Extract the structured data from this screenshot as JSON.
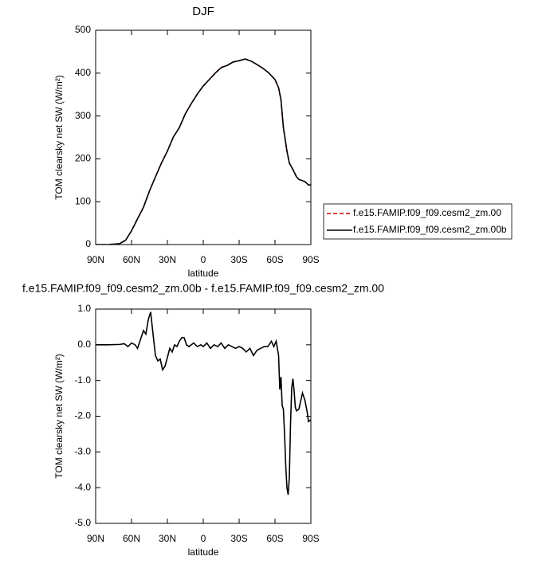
{
  "chart_data": [
    {
      "type": "line",
      "title": "DJF",
      "xlabel": "latitude",
      "ylabel": "TOM clearsky net SW (W/m²)",
      "x": [
        90,
        80,
        70,
        65,
        60,
        55,
        50,
        45,
        40,
        35,
        30,
        25,
        20,
        15,
        10,
        5,
        0,
        -5,
        -10,
        -15,
        -20,
        -25,
        -30,
        -35,
        -40,
        -45,
        -50,
        -55,
        -60,
        -63,
        -65,
        -67,
        -70,
        -72,
        -75,
        -78,
        -80,
        -83,
        -85,
        -88,
        -90
      ],
      "series": [
        {
          "name": "f.e15.FAMIP.f09_f09.cesm2_zm.00",
          "color": "#cc0000",
          "dash": true,
          "values": [
            0,
            0,
            2,
            10,
            32,
            60,
            87,
            125,
            158,
            190,
            218,
            251,
            273,
            305,
            329,
            351,
            370,
            385,
            400,
            413,
            418,
            426,
            429,
            433,
            428,
            420,
            411,
            400,
            385,
            366,
            338,
            273,
            218,
            190,
            175,
            158,
            152,
            149,
            147,
            139,
            139
          ]
        },
        {
          "name": "f.e15.FAMIP.f09_f09.cesm2_zm.00b",
          "color": "#000000",
          "dash": false,
          "values": [
            0,
            0,
            2,
            10,
            32,
            60,
            87,
            125,
            158,
            190,
            218,
            251,
            273,
            305,
            329,
            351,
            370,
            385,
            400,
            413,
            418,
            426,
            429,
            433,
            428,
            420,
            411,
            400,
            385,
            366,
            338,
            273,
            218,
            190,
            175,
            158,
            152,
            149,
            147,
            139,
            139
          ]
        }
      ],
      "xlim": [
        90,
        -90
      ],
      "xticks": [
        {
          "value": 90,
          "label": "90N"
        },
        {
          "value": 60,
          "label": "60N"
        },
        {
          "value": 30,
          "label": "30N"
        },
        0,
        {
          "value": -30,
          "label": "30S"
        },
        {
          "value": -60,
          "label": "60S"
        },
        {
          "value": -90,
          "label": "90S"
        }
      ],
      "ylim": [
        0,
        500
      ],
      "yticks": [
        0,
        100,
        200,
        300,
        400,
        500
      ],
      "legend": "right"
    },
    {
      "type": "line",
      "title": "f.e15.FAMIP.f09_f09.cesm2_zm.00b - f.e15.FAMIP.f09_f09.cesm2_zm.00",
      "xlabel": "latitude",
      "ylabel": "TOM clearsky net SW (W/m²)",
      "x": [
        90,
        80,
        70,
        66,
        63,
        60,
        57,
        55,
        53,
        50,
        48,
        46,
        44,
        42,
        40,
        38,
        36,
        34,
        32,
        30,
        28,
        26,
        24,
        22,
        20,
        18,
        16,
        14,
        12,
        10,
        8,
        5,
        2,
        0,
        -3,
        -6,
        -9,
        -12,
        -15,
        -18,
        -21,
        -24,
        -27,
        -30,
        -33,
        -36,
        -39,
        -42,
        -45,
        -48,
        -51,
        -54,
        -57,
        -59,
        -61,
        -63,
        -64,
        -65,
        -66,
        -67,
        -68,
        -69,
        -70,
        -71,
        -72,
        -73,
        -74,
        -75,
        -76,
        -77,
        -78,
        -80,
        -82,
        -83,
        -85,
        -87,
        -88,
        -90
      ],
      "series": [
        {
          "color": "#000000",
          "dash": false,
          "values": [
            0,
            0,
            0.01,
            0.03,
            -0.05,
            0.05,
            0,
            -0.1,
            0.1,
            0.4,
            0.3,
            0.7,
            0.92,
            0.3,
            -0.3,
            -0.45,
            -0.4,
            -0.7,
            -0.6,
            -0.35,
            -0.1,
            -0.2,
            0,
            -0.05,
            0.1,
            0.2,
            0.2,
            0,
            -0.05,
            0,
            0.05,
            -0.05,
            0,
            -0.05,
            0.05,
            -0.1,
            0,
            -0.05,
            0.05,
            -0.1,
            0,
            -0.05,
            -0.1,
            -0.05,
            -0.1,
            -0.2,
            -0.1,
            -0.3,
            -0.15,
            -0.1,
            -0.05,
            -0.05,
            0.1,
            -0.05,
            0.1,
            -0.3,
            -1.25,
            -0.9,
            -1.7,
            -1.8,
            -2.5,
            -3.4,
            -4.0,
            -4.2,
            -3.7,
            -2.2,
            -1.2,
            -0.95,
            -1.3,
            -1.75,
            -1.85,
            -1.8,
            -1.5,
            -1.35,
            -1.55,
            -1.9,
            -2.15,
            -2.1
          ]
        }
      ],
      "xlim": [
        90,
        -90
      ],
      "xticks": [
        {
          "value": 90,
          "label": "90N"
        },
        {
          "value": 60,
          "label": "60N"
        },
        {
          "value": 30,
          "label": "30N"
        },
        0,
        {
          "value": -30,
          "label": "30S"
        },
        {
          "value": -60,
          "label": "60S"
        },
        {
          "value": -90,
          "label": "90S"
        }
      ],
      "ylim": [
        -5,
        1
      ],
      "yticks": [
        {
          "value": -5,
          "label": "-5.0"
        },
        {
          "value": -4,
          "label": "-4.0"
        },
        {
          "value": -3,
          "label": "-3.0"
        },
        {
          "value": -2,
          "label": "-2.0"
        },
        {
          "value": -1,
          "label": "-1.0"
        },
        {
          "value": 0,
          "label": "0.0"
        },
        {
          "value": 1,
          "label": "1.0"
        }
      ]
    }
  ]
}
